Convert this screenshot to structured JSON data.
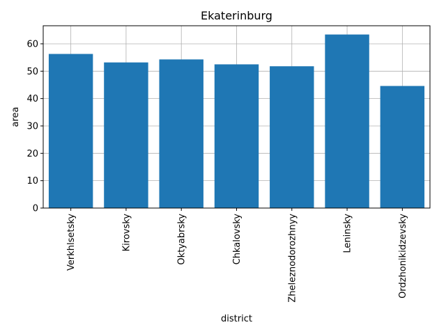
{
  "chart_data": {
    "type": "bar",
    "title": "Ekaterinburg",
    "xlabel": "district",
    "ylabel": "area",
    "categories": [
      "Verkhlsetsky",
      "Kirovsky",
      "Oktyabrsky",
      "Chkalovsky",
      "Zheleznodorozhnyy",
      "Leninsky",
      "Ordzhonikidzevsky"
    ],
    "values": [
      56.3,
      53.2,
      54.3,
      52.5,
      51.8,
      63.4,
      44.6
    ],
    "ylim": [
      0,
      66.6
    ],
    "yticks": [
      0,
      10,
      20,
      30,
      40,
      50,
      60
    ],
    "grid": true,
    "bar_color": "#1f77b4",
    "grid_color": "#b0b0b0"
  }
}
